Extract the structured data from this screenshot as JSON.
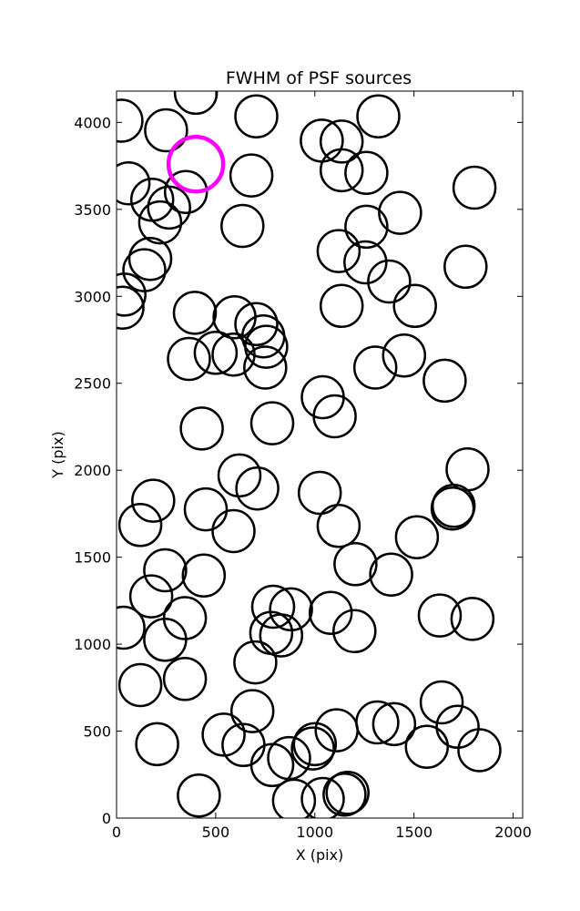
{
  "chart_data": {
    "type": "scatter",
    "title": "FWHM of PSF sources",
    "xlabel": "X (pix)",
    "ylabel": "Y (pix)",
    "xlim": [
      0,
      2048
    ],
    "ylim": [
      0,
      4180
    ],
    "xticks": [
      0,
      500,
      1000,
      1500,
      2000
    ],
    "yticks": [
      0,
      500,
      1000,
      1500,
      2000,
      2500,
      3000,
      3500,
      4000
    ],
    "marker": "open circle",
    "marker_color": "#000000",
    "grid": false,
    "series": [
      {
        "color": "#000000",
        "points": [
          [
            25,
            4010
          ],
          [
            250,
            3955
          ],
          [
            400,
            4170
          ],
          [
            705,
            4035
          ],
          [
            1320,
            4035
          ],
          [
            1035,
            3895
          ],
          [
            1135,
            3890
          ],
          [
            1135,
            3725
          ],
          [
            1260,
            3710
          ],
          [
            1430,
            3480
          ],
          [
            1805,
            3625
          ],
          [
            60,
            3650
          ],
          [
            180,
            3555
          ],
          [
            265,
            3510
          ],
          [
            350,
            3600
          ],
          [
            680,
            3695
          ],
          [
            220,
            3425
          ],
          [
            635,
            3405
          ],
          [
            1260,
            3400
          ],
          [
            1120,
            3260
          ],
          [
            1255,
            3195
          ],
          [
            1375,
            3085
          ],
          [
            1760,
            3170
          ],
          [
            140,
            3150
          ],
          [
            170,
            3215
          ],
          [
            40,
            3010
          ],
          [
            30,
            2935
          ],
          [
            395,
            2905
          ],
          [
            595,
            2880
          ],
          [
            705,
            2840
          ],
          [
            740,
            2770
          ],
          [
            755,
            2710
          ],
          [
            1135,
            2945
          ],
          [
            1505,
            2945
          ],
          [
            365,
            2640
          ],
          [
            500,
            2675
          ],
          [
            590,
            2665
          ],
          [
            750,
            2590
          ],
          [
            1305,
            2590
          ],
          [
            1450,
            2660
          ],
          [
            1655,
            2515
          ],
          [
            1040,
            2420
          ],
          [
            1100,
            2310
          ],
          [
            430,
            2240
          ],
          [
            785,
            2270
          ],
          [
            620,
            1970
          ],
          [
            710,
            1895
          ],
          [
            1025,
            1870
          ],
          [
            1770,
            2005
          ],
          [
            185,
            1825
          ],
          [
            120,
            1685
          ],
          [
            450,
            1775
          ],
          [
            590,
            1650
          ],
          [
            1120,
            1680
          ],
          [
            1515,
            1615
          ],
          [
            1695,
            1780
          ],
          [
            1700,
            1795
          ],
          [
            245,
            1425
          ],
          [
            440,
            1395
          ],
          [
            175,
            1275
          ],
          [
            1205,
            1460
          ],
          [
            1385,
            1400
          ],
          [
            35,
            1095
          ],
          [
            345,
            1150
          ],
          [
            245,
            1025
          ],
          [
            790,
            1215
          ],
          [
            880,
            1200
          ],
          [
            1080,
            1180
          ],
          [
            780,
            1065
          ],
          [
            830,
            1050
          ],
          [
            1200,
            1075
          ],
          [
            1630,
            1165
          ],
          [
            1795,
            1145
          ],
          [
            700,
            895
          ],
          [
            120,
            765
          ],
          [
            345,
            800
          ],
          [
            685,
            615
          ],
          [
            540,
            480
          ],
          [
            640,
            420
          ],
          [
            205,
            425
          ],
          [
            785,
            305
          ],
          [
            870,
            345
          ],
          [
            990,
            400
          ],
          [
            1000,
            425
          ],
          [
            1110,
            505
          ],
          [
            1315,
            550
          ],
          [
            1400,
            540
          ],
          [
            1565,
            410
          ],
          [
            1640,
            665
          ],
          [
            1720,
            525
          ],
          [
            1830,
            390
          ],
          [
            415,
            130
          ],
          [
            895,
            100
          ],
          [
            1040,
            110
          ],
          [
            1150,
            135
          ],
          [
            1165,
            145
          ]
        ]
      },
      {
        "color": "#ff00ff",
        "points": [
          [
            400,
            3760
          ]
        ]
      }
    ]
  }
}
